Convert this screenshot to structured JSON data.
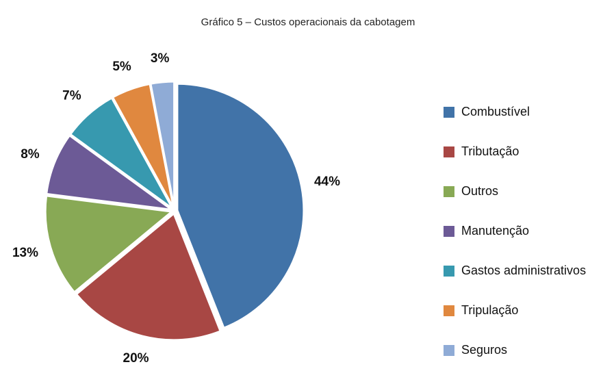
{
  "chart_data": {
    "type": "pie",
    "title": "Gráfico 5 – Custos operacionais da cabotagem",
    "categories": [
      "Combustível",
      "Tributação",
      "Outros",
      "Manutenção",
      "Gastos administrativos",
      "Tripulação",
      "Seguros"
    ],
    "values": [
      44,
      20,
      13,
      8,
      7,
      5,
      3
    ],
    "value_labels": [
      "44%",
      "20%",
      "13%",
      "8%",
      "7%",
      "5%",
      "3%"
    ],
    "colors": [
      "#4173a8",
      "#a84744",
      "#88a955",
      "#6c5a96",
      "#3799af",
      "#e0883f",
      "#8fabd6"
    ],
    "legend": "right"
  }
}
